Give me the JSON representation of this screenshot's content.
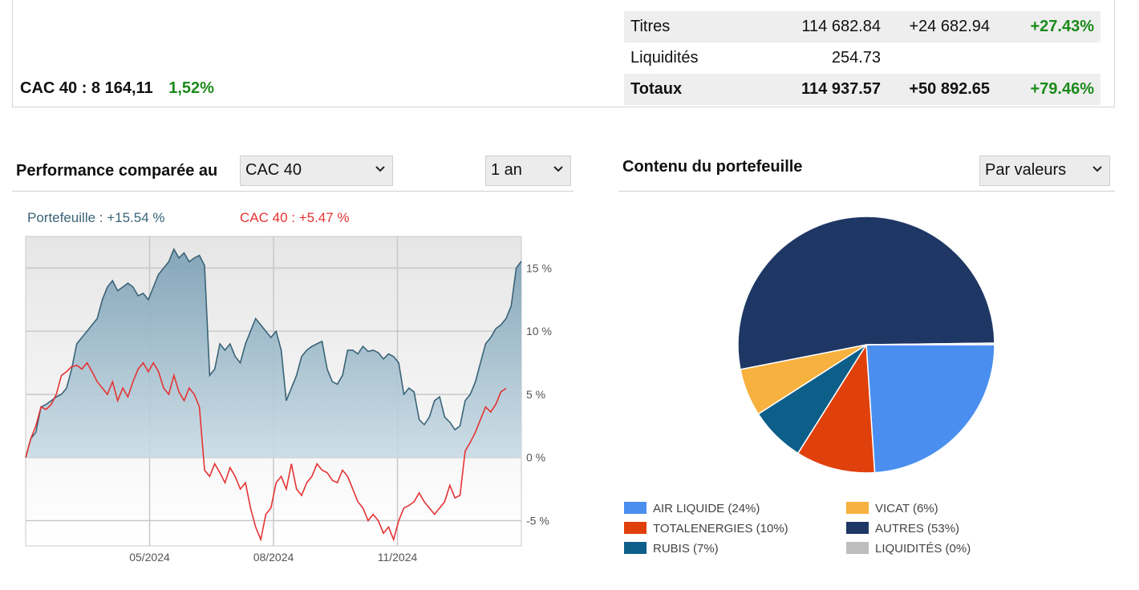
{
  "index": {
    "label": "CAC 40 : 8 164,11",
    "change": "1,52%"
  },
  "totals": [
    {
      "label": "Titres",
      "value": "114 682.84",
      "gain": "+24 682.94",
      "pct": "+27.43%"
    },
    {
      "label": "Liquidités",
      "value": "254.73",
      "gain": "",
      "pct": ""
    },
    {
      "label": "Totaux",
      "value": "114 937.57",
      "gain": "+50 892.65",
      "pct": "+79.46%"
    }
  ],
  "performance": {
    "title": "Performance comparée au",
    "index_select": "CAC 40",
    "period_select": "1 an",
    "legend_portfolio": "Portefeuille : +15.54 %",
    "legend_index": "CAC 40 : +5.47 %"
  },
  "portfolio": {
    "title": "Contenu du portefeuille",
    "mode_select": "Par valeurs"
  },
  "colors": {
    "positive": "#1b8a1b",
    "portfolio_line": "#3a6378",
    "index_line": "#e53333",
    "air_liquide": "#4a8fef",
    "totalenergies": "#e0400c",
    "rubis": "#0d5f8a",
    "vicat": "#f7b13f",
    "autres": "#1e3764",
    "liquidites": "#bdbdbd"
  },
  "chart_data": [
    {
      "type": "line",
      "x_tick_labels": [
        "05/2024",
        "08/2024",
        "11/2024"
      ],
      "y_tick_labels": [
        "15 %",
        "10 %",
        "5 %",
        "0 %",
        "-5 %"
      ],
      "ylim": [
        -7,
        17.5
      ],
      "yticks": [
        15,
        10,
        5,
        0,
        -5
      ],
      "x_tick_positions": [
        0.25,
        0.5,
        0.75
      ],
      "grid": true,
      "legend_position": "top-left",
      "series": [
        {
          "name": "Portefeuille : +15.54 %",
          "values": [
            0,
            1.5,
            2,
            4,
            4.2,
            4.5,
            4.8,
            5,
            5.5,
            7,
            9,
            9.5,
            10,
            10.5,
            11,
            12.5,
            13.5,
            14,
            13.2,
            13.5,
            13.8,
            13.5,
            12.8,
            13,
            12.5,
            13.5,
            14.5,
            15,
            15.5,
            16.5,
            15.8,
            16.2,
            15.5,
            15.8,
            16,
            15.2,
            6.5,
            7,
            9,
            8.5,
            9,
            8,
            7.5,
            9,
            10,
            11,
            10.5,
            10,
            9.5,
            10,
            8.5,
            4.5,
            5.5,
            6.5,
            8,
            8.5,
            8.8,
            9,
            9.2,
            7,
            6,
            5.8,
            6.5,
            8.5,
            8.5,
            8.2,
            8.8,
            8.4,
            8.5,
            8.3,
            7.8,
            8.2,
            8,
            7.5,
            5,
            5.5,
            5.2,
            3,
            2.6,
            3.2,
            4.5,
            4.8,
            3.2,
            2.8,
            2.2,
            2.5,
            4.5,
            5,
            6,
            7.5,
            9,
            9.5,
            10.2,
            10.5,
            11,
            12,
            15,
            15.54
          ],
          "color": "#3a6378"
        },
        {
          "name": "CAC 40 : +5.47 %",
          "values": [
            0,
            1.5,
            2.5,
            4,
            3.8,
            4.2,
            5,
            6.5,
            6.8,
            7.2,
            7.3,
            7,
            7.5,
            6.8,
            6,
            5.5,
            5,
            6,
            4.5,
            5.5,
            4.8,
            6,
            7,
            7.5,
            6.8,
            7.5,
            6.8,
            5.5,
            5,
            6.5,
            5.2,
            4.5,
            5.5,
            5,
            4,
            -1,
            -1.5,
            -0.5,
            -1.2,
            -2,
            -0.8,
            -1.5,
            -2.5,
            -2,
            -4,
            -5.5,
            -6.5,
            -4.5,
            -4,
            -2,
            -1.5,
            -2.5,
            -0.5,
            -2.5,
            -3,
            -2,
            -1.5,
            -0.5,
            -1,
            -1.2,
            -1.8,
            -2,
            -1,
            -1.5,
            -2.5,
            -3.5,
            -4,
            -5,
            -4.5,
            -5,
            -6,
            -5.5,
            -6.5,
            -5,
            -4,
            -3.8,
            -3.5,
            -2.8,
            -3.5,
            -4,
            -4.5,
            -4,
            -3.5,
            -2.2,
            -3.2,
            -3,
            0.5,
            1.2,
            2,
            3,
            4,
            3.6,
            4.2,
            5.2,
            5.47
          ],
          "color": "#e53333"
        }
      ]
    },
    {
      "type": "pie",
      "slices": [
        {
          "label": "AIR LIQUIDE (24%)",
          "value": 24,
          "color": "#4a8fef"
        },
        {
          "label": "TOTALENERGIES (10%)",
          "value": 10,
          "color": "#e0400c"
        },
        {
          "label": "RUBIS (7%)",
          "value": 7,
          "color": "#0d5f8a"
        },
        {
          "label": "VICAT (6%)",
          "value": 6,
          "color": "#f7b13f"
        },
        {
          "label": "AUTRES (53%)",
          "value": 53,
          "color": "#1e3764"
        },
        {
          "label": "LIQUIDITÉS (0%)",
          "value": 0.2,
          "color": "#bdbdbd"
        }
      ]
    }
  ]
}
